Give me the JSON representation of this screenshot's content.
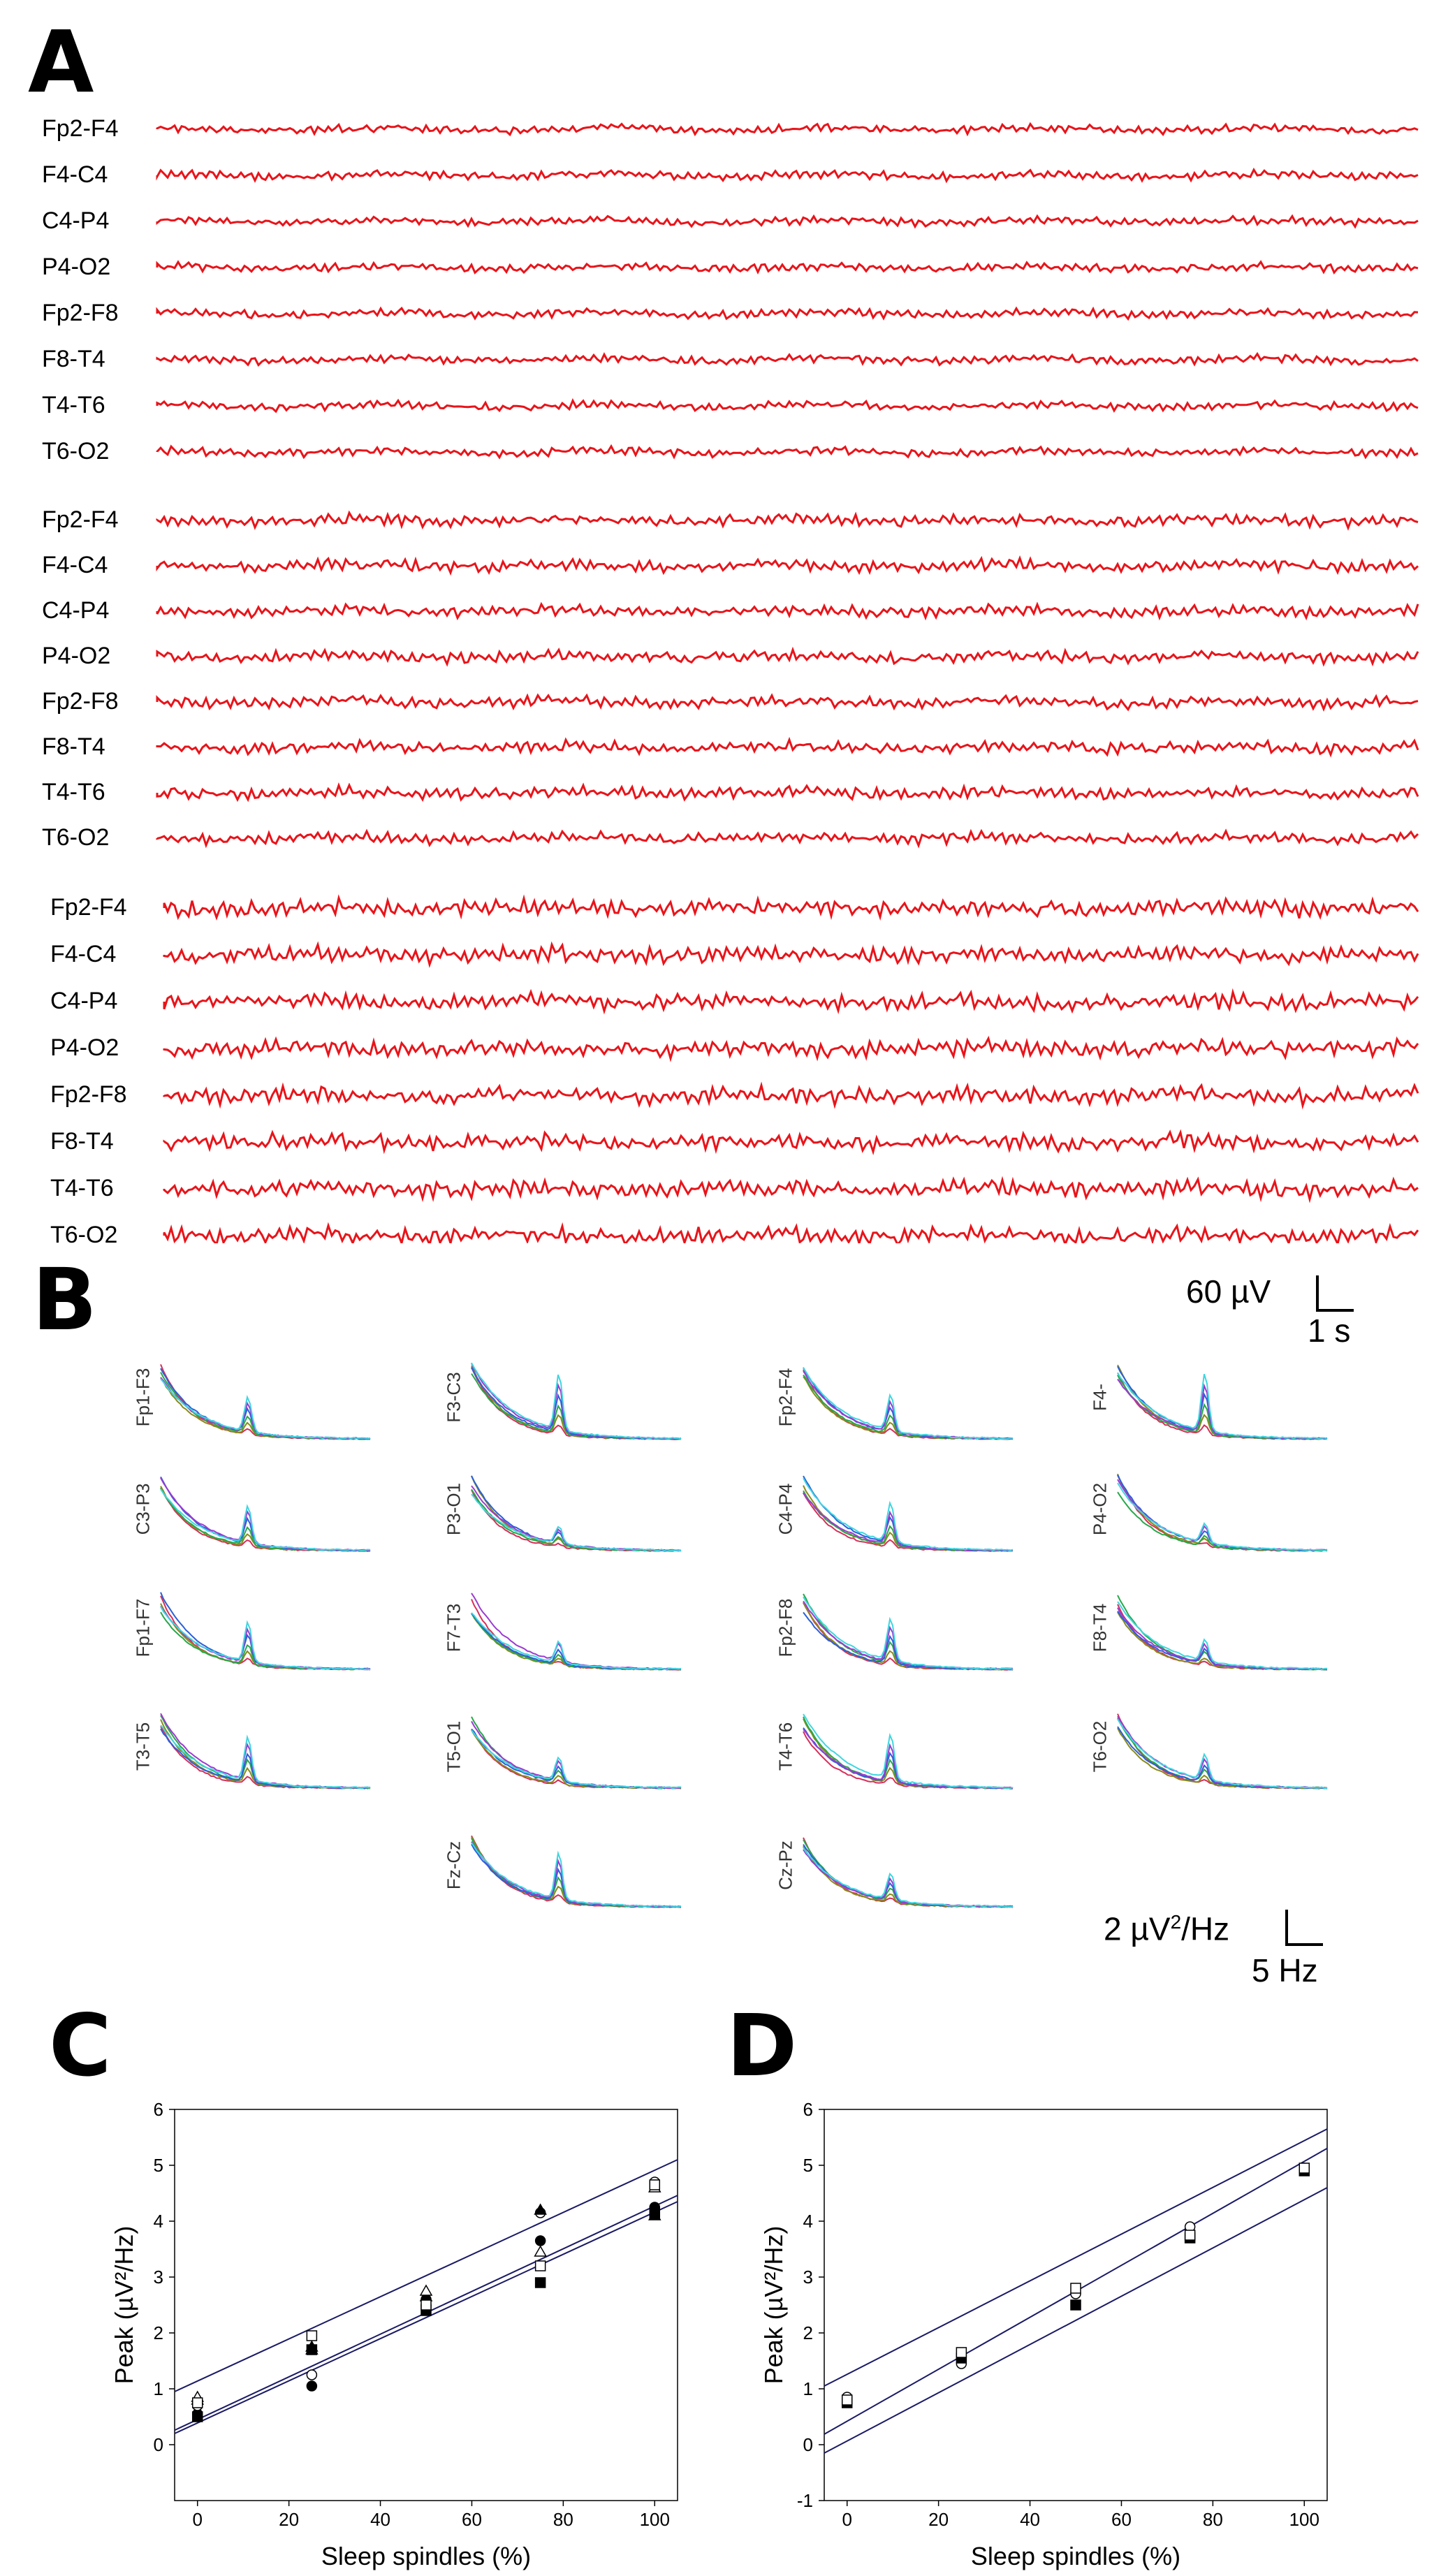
{
  "panels": {
    "a": {
      "letter": "A"
    },
    "b": {
      "letter": "B"
    },
    "c": {
      "letter": "C"
    },
    "d": {
      "letter": "D"
    }
  },
  "eeg": {
    "trace_color": "#e8141a",
    "groups": [
      {
        "channels": [
          "Fp2-F4",
          "F4-C4",
          "C4-P4",
          "P4-O2",
          "Fp2-F8",
          "F8-T4",
          "T4-T6",
          "T6-O2"
        ]
      },
      {
        "channels": [
          "Fp2-F4",
          "F4-C4",
          "C4-P4",
          "P4-O2",
          "Fp2-F8",
          "F8-T4",
          "T4-T6",
          "T6-O2"
        ]
      },
      {
        "channels": [
          "Fp2-F4",
          "F4-C4",
          "C4-P4",
          "P4-O2",
          "Fp2-F8",
          "F8-T4",
          "T4-T6",
          "T6-O2"
        ]
      }
    ],
    "scale_bar": {
      "amplitude": "60 µV",
      "time": "1 s"
    }
  },
  "spectra": {
    "line_colors": [
      "#d62f5a",
      "#8a8a1c",
      "#27a84a",
      "#2b5fd9",
      "#9b3bd0",
      "#3fd6e0"
    ],
    "channels": [
      "Fp1-F3",
      "F3-C3",
      "Fp2-F4",
      "F4-",
      "C3-P3",
      "P3-O1",
      "C4-P4",
      "P4-O2",
      "Fp1-F7",
      "F7-T3",
      "Fp2-F8",
      "F8-T4",
      "T3-T5",
      "T5-O1",
      "T4-T6",
      "T6-O2",
      "Fz-Cz",
      "Cz-Pz"
    ],
    "scale_bar": {
      "power_prefix": "2 µV",
      "power_exp": "2",
      "power_suffix": "/Hz",
      "freq": "5 Hz"
    }
  },
  "chart_data": [
    {
      "type": "scatter",
      "panel": "C",
      "xlabel": "Sleep spindles (%)",
      "ylabel": "Peak (µV²/Hz)",
      "xlim": [
        -5,
        105
      ],
      "ylim": [
        -1,
        6
      ],
      "xticks": [
        "0",
        "20",
        "40",
        "60",
        "80",
        "100"
      ],
      "yticks": [
        "0",
        "1",
        "2",
        "3",
        "4",
        "5",
        "6"
      ],
      "marker_color": "#000000",
      "line_color": "#1a1a66",
      "series": [
        {
          "marker": "circle-filled",
          "x": [
            0,
            25,
            50,
            75,
            100
          ],
          "y": [
            0.55,
            1.05,
            2.5,
            3.65,
            4.25
          ]
        },
        {
          "marker": "circle-open",
          "x": [
            0,
            25,
            50,
            75,
            100
          ],
          "y": [
            0.7,
            1.25,
            2.6,
            4.15,
            4.7
          ]
        },
        {
          "marker": "triangle-filled",
          "x": [
            0,
            25,
            50,
            75,
            100
          ],
          "y": [
            0.8,
            1.75,
            2.65,
            4.2,
            4.1
          ]
        },
        {
          "marker": "triangle-open",
          "x": [
            0,
            25,
            50,
            75,
            100
          ],
          "y": [
            0.85,
            1.7,
            2.75,
            3.45,
            4.6
          ]
        },
        {
          "marker": "square-filled",
          "x": [
            0,
            25,
            50,
            75,
            100
          ],
          "y": [
            0.5,
            1.7,
            2.4,
            2.9,
            4.15
          ]
        },
        {
          "marker": "square-open",
          "x": [
            0,
            25,
            50,
            75,
            100
          ],
          "y": [
            0.75,
            1.95,
            2.5,
            3.2,
            4.65
          ]
        }
      ],
      "regression": {
        "slope": 0.0382,
        "intercept": 0.45,
        "ci_upper": [
          0.95,
          5.1
        ],
        "ci_lower": [
          0.2,
          4.35
        ]
      }
    },
    {
      "type": "scatter",
      "panel": "D",
      "xlabel": "Sleep spindles (%)",
      "ylabel": "Peak (µV²/Hz)",
      "xlim": [
        -5,
        105
      ],
      "ylim": [
        -1,
        6
      ],
      "xticks": [
        "0",
        "20",
        "40",
        "60",
        "80",
        "100"
      ],
      "yticks": [
        "-1",
        "0",
        "1",
        "2",
        "3",
        "4",
        "5",
        "6"
      ],
      "marker_color": "#000000",
      "line_color": "#1a1a66",
      "series": [
        {
          "marker": "circle-open",
          "x": [
            0,
            25,
            50,
            75,
            100
          ],
          "y": [
            0.85,
            1.45,
            2.7,
            3.9,
            4.95
          ]
        },
        {
          "marker": "square-filled",
          "x": [
            0,
            25,
            50,
            75,
            100
          ],
          "y": [
            0.75,
            1.55,
            2.5,
            3.7,
            4.9
          ]
        },
        {
          "marker": "square-open",
          "x": [
            0,
            25,
            50,
            75,
            100
          ],
          "y": [
            0.8,
            1.65,
            2.8,
            3.75,
            4.95
          ]
        }
      ],
      "regression": {
        "slope": 0.0465,
        "intercept": 0.42,
        "ci_upper": [
          1.05,
          5.65
        ],
        "ci_lower": [
          -0.15,
          4.6
        ]
      }
    }
  ]
}
